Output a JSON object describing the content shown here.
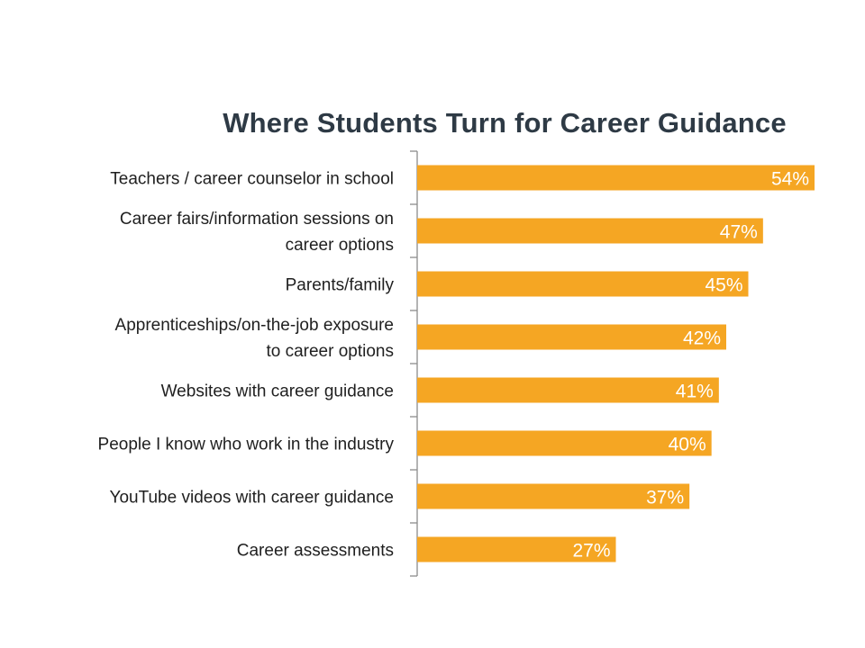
{
  "chart_data": {
    "type": "bar",
    "orientation": "horizontal",
    "title": "Where Students Turn for Career Guidance",
    "categories": [
      [
        "Teachers / career counselor in school"
      ],
      [
        "Career fairs/information sessions on",
        "career options"
      ],
      [
        "Parents/family"
      ],
      [
        "Apprenticeships/on-the-job exposure",
        "to career options"
      ],
      [
        "Websites with career guidance"
      ],
      [
        "People I know who work in the industry"
      ],
      [
        "YouTube videos with career guidance"
      ],
      [
        "Career assessments"
      ]
    ],
    "values": [
      54,
      47,
      45,
      42,
      41,
      40,
      37,
      27
    ],
    "data_labels": [
      "54%",
      "47%",
      "45%",
      "42%",
      "41%",
      "40%",
      "37%",
      "27%"
    ],
    "unit": "%",
    "xlim": [
      0,
      54
    ],
    "grid": false,
    "legend": "none",
    "colors": {
      "bar": "#f5a623",
      "data_label": "#ffffff",
      "axis": "#8c8c8c",
      "title": "#2e3a45",
      "category_label": "#1f1f1f"
    }
  }
}
